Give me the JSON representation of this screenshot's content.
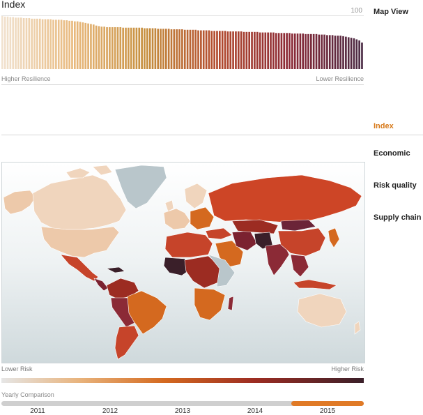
{
  "index_chart": {
    "title": "Index",
    "max_label": "100",
    "left_label": "Higher Resilience",
    "right_label": "Lower Resilience",
    "scores": [
      100,
      99,
      99,
      98,
      98,
      97,
      97,
      97,
      96,
      96,
      96,
      95,
      95,
      95,
      95,
      94,
      94,
      94,
      94,
      93,
      93,
      93,
      93,
      92,
      92,
      91,
      91,
      90,
      90,
      89,
      88,
      87,
      86,
      85,
      84,
      82,
      81,
      80,
      80,
      79,
      79,
      79,
      79,
      79,
      79,
      78,
      78,
      78,
      78,
      78,
      78,
      78,
      78,
      77,
      77,
      77,
      77,
      77,
      76,
      76,
      76,
      76,
      76,
      75,
      75,
      75,
      75,
      75,
      74,
      74,
      74,
      74,
      74,
      73,
      73,
      73,
      73,
      73,
      72,
      72,
      72,
      72,
      72,
      72,
      71,
      71,
      71,
      71,
      71,
      71,
      70,
      70,
      70,
      70,
      70,
      70,
      69,
      69,
      69,
      69,
      69,
      69,
      68,
      68,
      68,
      68,
      68,
      68,
      67,
      67,
      67,
      67,
      67,
      66,
      66,
      66,
      66,
      66,
      65,
      65,
      65,
      64,
      64,
      64,
      63,
      63,
      63,
      62,
      61,
      60,
      59,
      58,
      56,
      54,
      50
    ],
    "colors": [
      "#f1e2cf",
      "#e8b87c",
      "#c68f3e",
      "#b24a2e",
      "#8b2a36",
      "#4a2a44"
    ]
  },
  "nav": {
    "map_view": "Map View",
    "items": [
      "Index",
      "Economic",
      "Risk quality",
      "Supply chain"
    ],
    "active": "Index",
    "active_color": "#d77a1b"
  },
  "map": {
    "low_label": "Lower Risk",
    "high_label": "Higher Risk",
    "ocean_color": "#dde5e7",
    "nodata_color": "#b9c6cb"
  },
  "timeline": {
    "label": "Yearly Comparison",
    "years": [
      "2011",
      "2012",
      "2013",
      "2014",
      "2015"
    ],
    "selected": "2015",
    "selected_color": "#e07a26"
  }
}
